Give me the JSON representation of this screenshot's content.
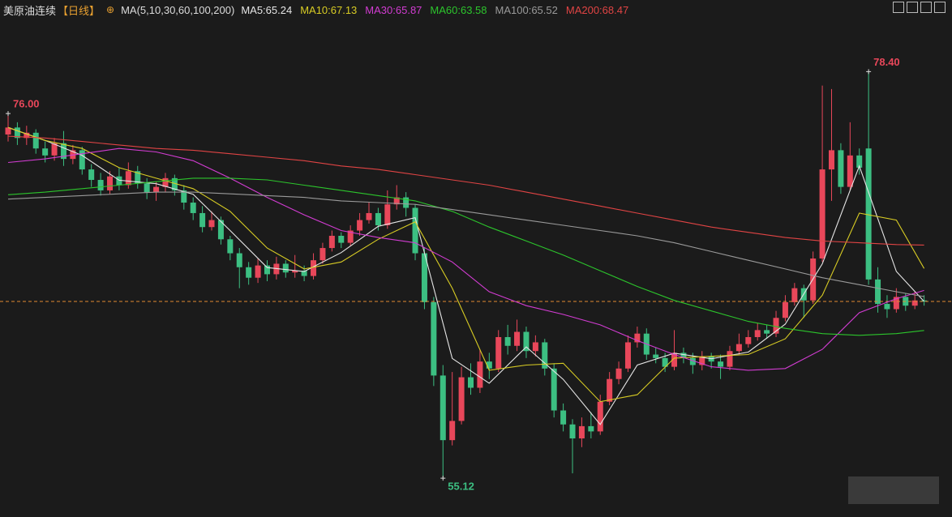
{
  "chart_data": {
    "type": "candlestick",
    "title": "美原油连续",
    "subtitle": "【日线】",
    "indicator": "MA(5,10,30,60,100,200)",
    "ylim": [
      52.9,
      82.5
    ],
    "up_color": "#e8475a",
    "down_color": "#3cbf82",
    "open": [
      74.8,
      75.2,
      74.6,
      74.9,
      74.0,
      73.6,
      74.3,
      73.4,
      73.9,
      72.8,
      72.2,
      71.6,
      72.4,
      71.9,
      72.7,
      72.0,
      71.5,
      71.8,
      72.3,
      71.6,
      70.9,
      70.3,
      69.5,
      69.9,
      68.8,
      68.0,
      67.2,
      66.6,
      67.3,
      66.8,
      67.4,
      66.9,
      67.0,
      66.7,
      67.6,
      68.3,
      69.0,
      68.6,
      69.3,
      69.9,
      70.3,
      69.6,
      70.8,
      71.2,
      70.6,
      68.0,
      65.2,
      61.0,
      57.3,
      58.4,
      60.9,
      60.3,
      61.8,
      61.4,
      63.2,
      62.7,
      63.5,
      62.4,
      62.9,
      61.4,
      59.0,
      58.2,
      57.4,
      58.1,
      57.8,
      59.5,
      60.8,
      61.4,
      62.9,
      63.4,
      62.2,
      62.0,
      61.5,
      62.3,
      62.0,
      61.6,
      62.1,
      61.8,
      61.5,
      62.4,
      62.8,
      63.2,
      63.6,
      63.4,
      64.3,
      65.2,
      66.0,
      65.3,
      67.7,
      72.8,
      73.9,
      71.8,
      73.6,
      74.0,
      66.5,
      65.1,
      64.8,
      65.5,
      65.0,
      65.3
    ],
    "high": [
      76.0,
      75.5,
      75.3,
      75.1,
      74.4,
      74.6,
      75.0,
      74.2,
      74.1,
      73.1,
      72.6,
      72.7,
      72.9,
      73.2,
      73.0,
      72.3,
      72.1,
      72.6,
      72.5,
      71.9,
      71.2,
      70.7,
      70.4,
      70.1,
      69.0,
      68.3,
      67.5,
      67.7,
      67.6,
      67.8,
      67.6,
      67.9,
      67.3,
      68.0,
      68.6,
      69.3,
      69.2,
      69.6,
      70.3,
      70.9,
      70.6,
      71.6,
      71.9,
      71.5,
      70.8,
      68.3,
      65.5,
      61.6,
      61.2,
      61.5,
      61.7,
      62.5,
      62.3,
      63.6,
      63.9,
      64.2,
      63.8,
      63.3,
      63.1,
      61.7,
      59.4,
      58.5,
      58.6,
      58.9,
      59.9,
      61.2,
      61.8,
      63.3,
      63.8,
      63.7,
      62.6,
      62.3,
      63.6,
      62.6,
      62.3,
      62.4,
      62.3,
      62.2,
      62.7,
      63.4,
      63.6,
      64.0,
      63.9,
      64.7,
      65.6,
      66.3,
      66.2,
      68.1,
      77.6,
      77.4,
      74.3,
      75.5,
      74.0,
      78.4,
      67.2,
      65.6,
      66.0,
      65.7,
      65.8,
      65.6
    ],
    "low": [
      74.4,
      74.2,
      74.2,
      73.7,
      73.2,
      73.3,
      73.0,
      73.1,
      72.5,
      71.8,
      71.3,
      71.4,
      71.6,
      71.7,
      71.7,
      71.1,
      71.0,
      71.5,
      71.3,
      70.5,
      69.9,
      69.2,
      69.3,
      68.5,
      67.6,
      66.0,
      66.2,
      66.3,
      66.4,
      66.5,
      66.6,
      66.6,
      66.4,
      66.5,
      67.4,
      68.1,
      68.3,
      68.4,
      69.0,
      69.7,
      69.3,
      69.4,
      70.5,
      70.1,
      67.6,
      64.8,
      60.4,
      55.12,
      57.0,
      58.2,
      59.9,
      60.0,
      60.8,
      61.2,
      62.2,
      62.4,
      62.0,
      62.1,
      61.0,
      58.6,
      57.8,
      55.4,
      56.9,
      57.4,
      57.6,
      59.3,
      60.5,
      61.2,
      62.6,
      61.9,
      61.7,
      61.2,
      61.3,
      61.7,
      61.1,
      61.3,
      61.4,
      60.8,
      61.3,
      62.2,
      62.6,
      63.0,
      63.1,
      63.2,
      64.1,
      65.0,
      64.3,
      65.1,
      67.5,
      71.0,
      71.4,
      71.6,
      72.5,
      66.2,
      64.6,
      64.3,
      64.6,
      64.7,
      64.8,
      65.0
    ],
    "close": [
      75.2,
      74.6,
      74.9,
      74.0,
      73.6,
      74.3,
      73.4,
      73.9,
      72.8,
      72.2,
      71.6,
      72.4,
      71.9,
      72.7,
      72.0,
      71.5,
      71.8,
      72.3,
      71.6,
      70.9,
      70.3,
      69.5,
      69.9,
      68.8,
      68.0,
      67.2,
      66.6,
      67.3,
      66.8,
      67.4,
      66.9,
      67.0,
      66.7,
      67.6,
      68.3,
      69.0,
      68.6,
      69.3,
      69.9,
      70.3,
      69.6,
      70.8,
      71.2,
      70.6,
      68.0,
      65.2,
      61.0,
      57.3,
      58.4,
      60.9,
      60.3,
      61.8,
      61.4,
      63.2,
      62.7,
      63.5,
      62.4,
      62.9,
      61.4,
      59.0,
      58.2,
      57.4,
      58.1,
      57.8,
      59.5,
      60.8,
      61.4,
      62.9,
      63.4,
      62.2,
      62.0,
      61.5,
      62.3,
      62.0,
      61.6,
      62.1,
      61.8,
      61.5,
      62.4,
      62.8,
      63.2,
      63.6,
      63.4,
      64.3,
      65.2,
      66.0,
      65.3,
      67.7,
      72.8,
      73.9,
      71.8,
      73.6,
      72.9,
      66.5,
      65.1,
      64.8,
      65.5,
      65.0,
      65.3,
      65.24
    ],
    "ma_x": [
      0,
      4,
      8,
      12,
      16,
      20,
      24,
      28,
      32,
      36,
      40,
      44,
      48,
      52,
      56,
      60,
      64,
      68,
      72,
      76,
      80,
      84,
      88,
      92,
      96,
      99
    ],
    "series": [
      {
        "name": "MA5:65.24",
        "color": "#e6e6e6",
        "values": [
          75.2,
          74.46,
          73.6,
          72.18,
          71.98,
          71.38,
          69.3,
          67.18,
          66.96,
          68.04,
          69.54,
          70.04,
          61.98,
          60.56,
          62.64,
          60.78,
          58.2,
          61.6,
          62.28,
          61.96,
          62.34,
          63.94,
          67.4,
          73.0,
          66.96,
          65.24
        ]
      },
      {
        "name": "MA10:67.13",
        "color": "#d8cc24",
        "values": [
          75.2,
          74.46,
          74.0,
          72.9,
          72.3,
          71.7,
          70.4,
          68.3,
          67.1,
          67.5,
          68.8,
          69.8,
          66.0,
          61.3,
          61.6,
          61.7,
          59.5,
          59.9,
          62.0,
          62.1,
          62.2,
          63.1,
          65.6,
          70.3,
          69.9,
          67.13
        ]
      },
      {
        "name": "MA30:65.87",
        "color": "#d23cd2",
        "values": [
          73.2,
          73.4,
          73.7,
          74.0,
          73.8,
          73.3,
          72.3,
          71.2,
          70.2,
          69.3,
          68.9,
          68.6,
          67.5,
          65.8,
          65.0,
          64.5,
          63.9,
          63.0,
          62.2,
          61.5,
          61.3,
          61.4,
          62.5,
          64.6,
          65.4,
          65.87
        ]
      },
      {
        "name": "MA60:63.58",
        "color": "#2cc52c",
        "values": [
          71.35,
          71.5,
          71.7,
          71.9,
          72.1,
          72.3,
          72.3,
          72.2,
          71.9,
          71.6,
          71.3,
          71.0,
          70.4,
          69.5,
          68.7,
          67.9,
          67.0,
          66.1,
          65.3,
          64.7,
          64.1,
          63.7,
          63.4,
          63.3,
          63.4,
          63.58
        ]
      },
      {
        "name": "MA100:65.52",
        "color": "#9a9a9a",
        "values": [
          71.1,
          71.2,
          71.3,
          71.4,
          71.5,
          71.5,
          71.4,
          71.3,
          71.2,
          71.0,
          70.9,
          70.8,
          70.5,
          70.2,
          69.9,
          69.6,
          69.3,
          69.0,
          68.6,
          68.1,
          67.6,
          67.1,
          66.6,
          66.2,
          65.8,
          65.52
        ]
      },
      {
        "name": "MA200:68.47",
        "color": "#e04444",
        "values": [
          74.7,
          74.6,
          74.4,
          74.2,
          74.0,
          73.9,
          73.7,
          73.5,
          73.3,
          73.0,
          72.8,
          72.5,
          72.2,
          71.9,
          71.5,
          71.1,
          70.7,
          70.3,
          69.9,
          69.5,
          69.2,
          68.9,
          68.7,
          68.6,
          68.5,
          68.47
        ]
      }
    ],
    "high_labels": [
      {
        "value": 78.4,
        "label": "78.40"
      },
      {
        "value": 76.0,
        "label": "76.00"
      }
    ],
    "low_labels": [
      {
        "value": 55.12,
        "label": "55.12"
      }
    ]
  }
}
